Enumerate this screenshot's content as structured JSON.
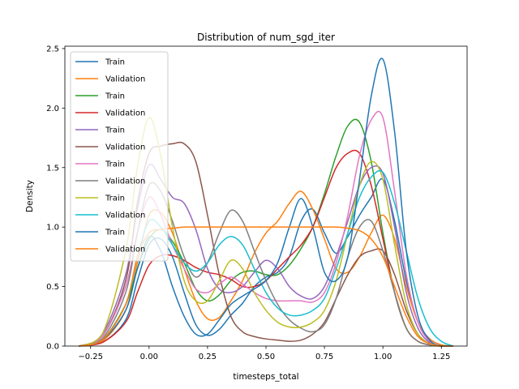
{
  "chart_data": {
    "type": "line",
    "title": "Distribution of num_sgd_iter",
    "xlabel": "timesteps_total",
    "ylabel": "Density",
    "xlim": [
      -0.36,
      1.36
    ],
    "ylim": [
      0,
      2.52
    ],
    "xticks": [
      -0.25,
      0.0,
      0.25,
      0.5,
      0.75,
      1.0,
      1.25
    ],
    "xtick_labels": [
      "−0.25",
      "0.00",
      "0.25",
      "0.50",
      "0.75",
      "1.00",
      "1.25"
    ],
    "yticks": [
      0.0,
      0.5,
      1.0,
      1.5,
      2.0,
      2.5
    ],
    "ytick_labels": [
      "0.0",
      "0.5",
      "1.0",
      "1.5",
      "2.0",
      "2.5"
    ],
    "grid": false,
    "legend_position": "upper-left",
    "series": [
      {
        "name": "Train",
        "color": "#1f77b4",
        "x": [
          -0.3,
          -0.2,
          -0.1,
          -0.05,
          0.0,
          0.05,
          0.1,
          0.15,
          0.2,
          0.25,
          0.3,
          0.35,
          0.4,
          0.45,
          0.5,
          0.55,
          0.6,
          0.65,
          0.7,
          0.75,
          0.8,
          0.85,
          0.9,
          0.95,
          1.0,
          1.05,
          1.1,
          1.15,
          1.2,
          1.25,
          1.3
        ],
        "y": [
          0.0,
          0.03,
          0.22,
          0.55,
          0.85,
          0.9,
          0.75,
          0.45,
          0.18,
          0.09,
          0.14,
          0.26,
          0.36,
          0.5,
          0.58,
          0.62,
          0.75,
          1.05,
          1.15,
          0.95,
          0.78,
          0.92,
          1.1,
          1.25,
          1.4,
          1.05,
          0.55,
          0.2,
          0.06,
          0.01,
          0.0
        ]
      },
      {
        "name": "Validation",
        "color": "#ff7f0e",
        "x": [
          -0.3,
          -0.2,
          -0.1,
          -0.05,
          0.0,
          0.05,
          0.1,
          0.15,
          0.2,
          0.25,
          0.3,
          0.35,
          0.4,
          0.45,
          0.5,
          0.55,
          0.6,
          0.65,
          0.7,
          0.75,
          0.8,
          0.85,
          0.9,
          0.95,
          1.0,
          1.05,
          1.1,
          1.15,
          1.2,
          1.25,
          1.3
        ],
        "y": [
          0.0,
          0.04,
          0.3,
          0.7,
          1.1,
          1.12,
          0.95,
          0.65,
          0.38,
          0.23,
          0.24,
          0.38,
          0.55,
          0.78,
          0.95,
          1.05,
          1.2,
          1.3,
          1.15,
          0.9,
          0.65,
          0.62,
          0.75,
          0.95,
          1.1,
          0.9,
          0.5,
          0.2,
          0.06,
          0.01,
          0.0
        ]
      },
      {
        "name": "Train",
        "color": "#2ca02c",
        "x": [
          -0.3,
          -0.2,
          -0.1,
          -0.05,
          0.0,
          0.05,
          0.1,
          0.15,
          0.2,
          0.25,
          0.3,
          0.35,
          0.4,
          0.45,
          0.5,
          0.55,
          0.6,
          0.65,
          0.7,
          0.75,
          0.8,
          0.85,
          0.9,
          0.95,
          1.0,
          1.05,
          1.1,
          1.15,
          1.2,
          1.25,
          1.3
        ],
        "y": [
          0.0,
          0.05,
          0.35,
          0.65,
          0.9,
          0.98,
          0.88,
          0.7,
          0.48,
          0.38,
          0.43,
          0.55,
          0.62,
          0.63,
          0.6,
          0.6,
          0.68,
          0.82,
          1.0,
          1.28,
          1.6,
          1.85,
          1.88,
          1.55,
          0.95,
          0.45,
          0.15,
          0.04,
          0.01,
          0.0,
          0.0
        ]
      },
      {
        "name": "Validation",
        "color": "#d62728",
        "x": [
          -0.3,
          -0.2,
          -0.1,
          -0.05,
          0.0,
          0.05,
          0.1,
          0.15,
          0.2,
          0.25,
          0.3,
          0.35,
          0.4,
          0.45,
          0.5,
          0.55,
          0.6,
          0.65,
          0.7,
          0.75,
          0.8,
          0.85,
          0.9,
          0.95,
          1.0,
          1.05,
          1.1,
          1.15,
          1.2,
          1.25,
          1.3
        ],
        "y": [
          0.0,
          0.03,
          0.2,
          0.45,
          0.68,
          0.76,
          0.76,
          0.72,
          0.66,
          0.62,
          0.6,
          0.56,
          0.5,
          0.5,
          0.55,
          0.65,
          0.75,
          0.85,
          1.0,
          1.25,
          1.5,
          1.62,
          1.62,
          1.35,
          0.9,
          0.45,
          0.15,
          0.04,
          0.01,
          0.0,
          0.0
        ]
      },
      {
        "name": "Train",
        "color": "#9467bd",
        "x": [
          -0.3,
          -0.2,
          -0.1,
          -0.05,
          0.0,
          0.05,
          0.1,
          0.15,
          0.2,
          0.25,
          0.3,
          0.35,
          0.4,
          0.45,
          0.5,
          0.55,
          0.6,
          0.65,
          0.7,
          0.75,
          0.8,
          0.85,
          0.9,
          0.95,
          1.0,
          1.05,
          1.1,
          1.15,
          1.2,
          1.25,
          1.3
        ],
        "y": [
          0.0,
          0.1,
          0.6,
          1.15,
          1.52,
          1.4,
          1.25,
          1.2,
          0.98,
          0.65,
          0.48,
          0.45,
          0.5,
          0.62,
          0.72,
          0.65,
          0.5,
          0.42,
          0.4,
          0.5,
          0.75,
          1.05,
          1.35,
          1.5,
          1.45,
          1.0,
          0.45,
          0.15,
          0.03,
          0.0,
          0.0
        ]
      },
      {
        "name": "Validation",
        "color": "#8c564b",
        "x": [
          -0.3,
          -0.2,
          -0.1,
          -0.05,
          0.0,
          0.05,
          0.1,
          0.15,
          0.2,
          0.25,
          0.3,
          0.35,
          0.4,
          0.45,
          0.5,
          0.55,
          0.6,
          0.65,
          0.7,
          0.75,
          0.8,
          0.85,
          0.9,
          0.95,
          1.0,
          1.05,
          1.1,
          1.15,
          1.2,
          1.25,
          1.3
        ],
        "y": [
          0.0,
          0.08,
          0.55,
          1.2,
          1.62,
          1.68,
          1.7,
          1.7,
          1.55,
          1.1,
          0.6,
          0.25,
          0.12,
          0.08,
          0.06,
          0.05,
          0.04,
          0.05,
          0.1,
          0.2,
          0.4,
          0.6,
          0.75,
          0.8,
          0.8,
          0.6,
          0.3,
          0.1,
          0.02,
          0.0,
          0.0
        ]
      },
      {
        "name": "Train",
        "color": "#e377c2",
        "x": [
          -0.3,
          -0.2,
          -0.1,
          -0.05,
          0.0,
          0.05,
          0.1,
          0.15,
          0.2,
          0.25,
          0.3,
          0.35,
          0.4,
          0.45,
          0.5,
          0.55,
          0.6,
          0.65,
          0.7,
          0.75,
          0.8,
          0.85,
          0.9,
          0.95,
          1.0,
          1.05,
          1.1,
          1.15,
          1.2,
          1.25,
          1.3
        ],
        "y": [
          0.0,
          0.08,
          0.5,
          0.95,
          1.25,
          1.1,
          0.85,
          0.65,
          0.48,
          0.45,
          0.52,
          0.58,
          0.52,
          0.45,
          0.4,
          0.38,
          0.38,
          0.38,
          0.37,
          0.45,
          0.7,
          1.1,
          1.6,
          1.9,
          1.92,
          1.3,
          0.6,
          0.2,
          0.04,
          0.0,
          0.0
        ]
      },
      {
        "name": "Validation",
        "color": "#7f7f7f",
        "x": [
          -0.3,
          -0.2,
          -0.1,
          -0.05,
          0.0,
          0.05,
          0.1,
          0.15,
          0.2,
          0.25,
          0.3,
          0.35,
          0.4,
          0.45,
          0.5,
          0.55,
          0.6,
          0.65,
          0.7,
          0.75,
          0.8,
          0.85,
          0.9,
          0.95,
          1.0,
          1.05,
          1.1,
          1.15,
          1.2,
          1.25,
          1.3
        ],
        "y": [
          0.0,
          0.06,
          0.45,
          0.95,
          1.35,
          1.3,
          1.05,
          0.75,
          0.58,
          0.7,
          0.95,
          1.14,
          1.05,
          0.8,
          0.55,
          0.35,
          0.22,
          0.15,
          0.12,
          0.18,
          0.4,
          0.75,
          1.0,
          1.05,
          0.8,
          0.45,
          0.15,
          0.04,
          0.01,
          0.0,
          0.0
        ]
      },
      {
        "name": "Train",
        "color": "#bcbd22",
        "x": [
          -0.3,
          -0.2,
          -0.1,
          -0.05,
          0.0,
          0.05,
          0.1,
          0.15,
          0.2,
          0.25,
          0.3,
          0.35,
          0.4,
          0.45,
          0.5,
          0.55,
          0.6,
          0.65,
          0.7,
          0.75,
          0.8,
          0.85,
          0.9,
          0.95,
          1.0,
          1.05,
          1.1,
          1.15,
          1.2,
          1.25,
          1.3
        ],
        "y": [
          0.0,
          0.1,
          0.8,
          1.5,
          1.92,
          1.6,
          1.0,
          0.55,
          0.38,
          0.38,
          0.55,
          0.72,
          0.65,
          0.45,
          0.3,
          0.2,
          0.16,
          0.16,
          0.2,
          0.3,
          0.55,
          0.95,
          1.35,
          1.55,
          1.4,
          0.85,
          0.35,
          0.1,
          0.02,
          0.0,
          0.0
        ]
      },
      {
        "name": "Validation",
        "color": "#17becf",
        "x": [
          -0.3,
          -0.2,
          -0.1,
          -0.05,
          0.0,
          0.05,
          0.1,
          0.15,
          0.2,
          0.25,
          0.3,
          0.35,
          0.4,
          0.45,
          0.5,
          0.55,
          0.6,
          0.65,
          0.7,
          0.75,
          0.8,
          0.85,
          0.9,
          0.95,
          1.0,
          1.05,
          1.1,
          1.15,
          1.2,
          1.25,
          1.3
        ],
        "y": [
          0.0,
          0.05,
          0.35,
          0.75,
          1.05,
          1.0,
          0.85,
          0.7,
          0.63,
          0.7,
          0.85,
          0.92,
          0.85,
          0.65,
          0.45,
          0.32,
          0.26,
          0.26,
          0.3,
          0.4,
          0.65,
          0.95,
          1.25,
          1.42,
          1.46,
          1.2,
          0.8,
          0.4,
          0.15,
          0.04,
          0.0
        ]
      },
      {
        "name": "Train",
        "color": "#1f77b4",
        "x": [
          -0.3,
          -0.2,
          -0.1,
          -0.05,
          0.0,
          0.05,
          0.1,
          0.15,
          0.2,
          0.25,
          0.3,
          0.35,
          0.4,
          0.45,
          0.5,
          0.55,
          0.6,
          0.65,
          0.7,
          0.75,
          0.8,
          0.85,
          0.9,
          0.95,
          1.0,
          1.05,
          1.1,
          1.15,
          1.2,
          1.25,
          1.3
        ],
        "y": [
          0.0,
          0.05,
          0.3,
          0.65,
          0.92,
          0.8,
          0.5,
          0.25,
          0.1,
          0.1,
          0.22,
          0.35,
          0.42,
          0.48,
          0.55,
          0.7,
          1.0,
          1.24,
          1.0,
          0.62,
          0.55,
          0.75,
          1.4,
          2.1,
          2.41,
          1.8,
          0.8,
          0.25,
          0.05,
          0.0,
          0.0
        ]
      },
      {
        "name": "Validation",
        "color": "#ff7f0e",
        "x": [
          -0.3,
          -0.2,
          -0.1,
          -0.05,
          0.0,
          0.05,
          0.1,
          0.15,
          0.2,
          0.25,
          0.3,
          0.35,
          0.4,
          0.45,
          0.5,
          0.55,
          0.6,
          0.65,
          0.7,
          0.75,
          0.8,
          0.85,
          0.9,
          0.95,
          1.0,
          1.05,
          1.1,
          1.15,
          1.2,
          1.25,
          1.3
        ],
        "y": [
          0.0,
          0.05,
          0.35,
          0.75,
          0.95,
          0.98,
          0.99,
          1.0,
          1.0,
          1.0,
          1.0,
          1.0,
          1.0,
          1.0,
          1.0,
          1.0,
          1.0,
          1.0,
          1.0,
          1.0,
          1.0,
          0.99,
          0.97,
          0.9,
          0.75,
          0.5,
          0.25,
          0.08,
          0.02,
          0.0,
          0.0
        ]
      }
    ]
  }
}
